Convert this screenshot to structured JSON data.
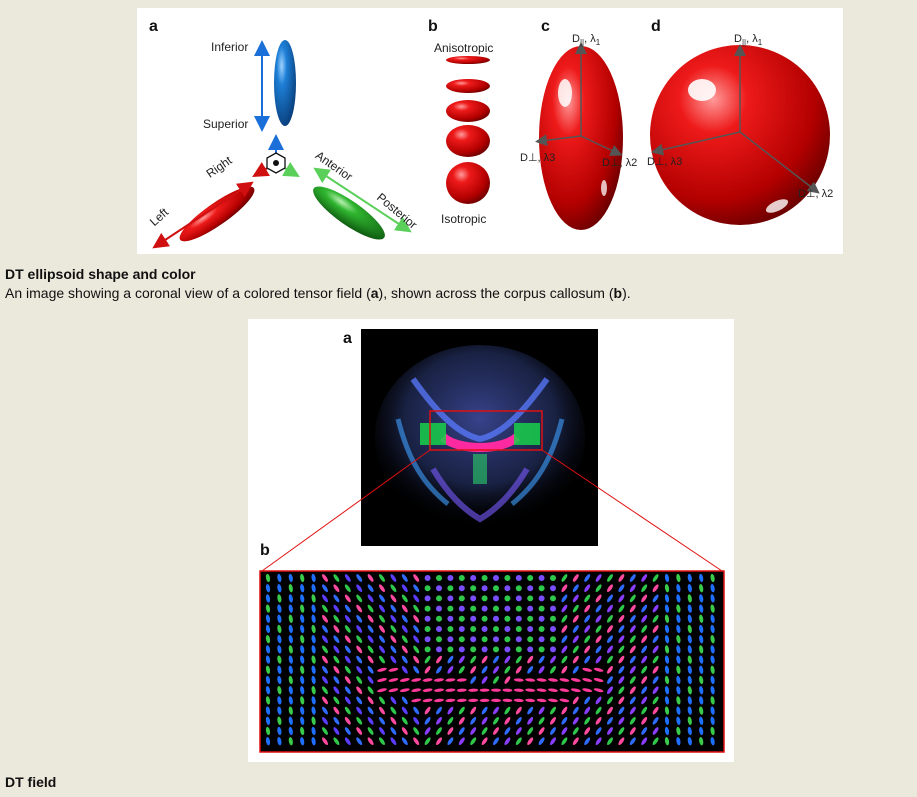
{
  "figure1": {
    "panel_a": {
      "letter": "a",
      "inferior": "Inferior",
      "superior": "Superior",
      "right": "Right",
      "left": "Left",
      "anterior": "Anterior",
      "posterior": "Posterior"
    },
    "panel_b": {
      "letter": "b",
      "anisotropic": "Anisotropic",
      "isotropic": "Isotropic"
    },
    "panel_c": {
      "letter": "c",
      "d_par": "D",
      "d_par_sub": "||",
      "lambda1": ", λ",
      "lambda1_sub": "1",
      "d_perp_l3": "D⊥, λ3",
      "d_perp_l2": "D⊥, λ2"
    },
    "panel_d": {
      "letter": "d",
      "d_par": "D",
      "d_par_sub": "||",
      "lambda1": ", λ",
      "lambda1_sub": "1",
      "d_perp_l3": "D⊥, λ3",
      "d_perp_l2": "D⊥, λ2"
    },
    "colors": {
      "red": "#d01010",
      "green": "#23a523",
      "blue": "#1a6fd8"
    }
  },
  "caption1": {
    "title": "DT ellipsoid shape and color",
    "text_before_a": "An image showing a coronal view of a colored tensor field (",
    "a": "a",
    "text_middle": "), shown across the corpus callosum (",
    "b": "b",
    "text_after": ")."
  },
  "figure2": {
    "panel_a_letter": "a",
    "panel_b_letter": "b",
    "roi_color": "#e01010"
  },
  "caption2": {
    "title": "DT field"
  }
}
